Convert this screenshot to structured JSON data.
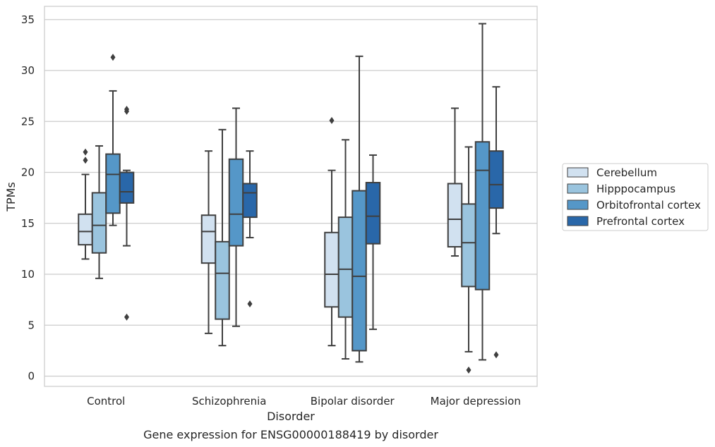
{
  "chart_data": {
    "type": "box",
    "title": "",
    "caption": "Gene expression for ENSG00000188419 by disorder",
    "xlabel": "Disorder",
    "ylabel": "TPMs",
    "ylim": [
      -1,
      36.3
    ],
    "yticks": [
      0,
      5,
      10,
      15,
      20,
      25,
      30,
      35
    ],
    "grid": "horizontal",
    "legend_position": "right",
    "categories": [
      "Control",
      "Schizophrenia",
      "Bipolar disorder",
      "Major depression"
    ],
    "series": [
      {
        "name": "Cerebellum",
        "color": "#d1e1f0",
        "boxes": [
          {
            "whislo": 11.5,
            "q1": 12.9,
            "med": 14.2,
            "q3": 15.9,
            "whishi": 19.8,
            "fliers": [
              21.2,
              22.0
            ]
          },
          {
            "whislo": 4.2,
            "q1": 11.1,
            "med": 14.2,
            "q3": 15.8,
            "whishi": 22.1,
            "fliers": []
          },
          {
            "whislo": 3.0,
            "q1": 6.8,
            "med": 10.0,
            "q3": 14.1,
            "whishi": 20.2,
            "fliers": [
              25.1
            ]
          },
          {
            "whislo": 11.8,
            "q1": 12.7,
            "med": 15.4,
            "q3": 18.9,
            "whishi": 26.3,
            "fliers": []
          }
        ]
      },
      {
        "name": "Hipppocampus",
        "color": "#9ac4de",
        "boxes": [
          {
            "whislo": 9.6,
            "q1": 12.1,
            "med": 14.8,
            "q3": 18.0,
            "whishi": 22.6,
            "fliers": []
          },
          {
            "whislo": 3.0,
            "q1": 5.6,
            "med": 10.1,
            "q3": 13.2,
            "whishi": 24.2,
            "fliers": []
          },
          {
            "whislo": 1.7,
            "q1": 5.8,
            "med": 10.5,
            "q3": 15.6,
            "whishi": 23.2,
            "fliers": []
          },
          {
            "whislo": 2.4,
            "q1": 8.8,
            "med": 13.1,
            "q3": 16.9,
            "whishi": 22.5,
            "fliers": [
              0.6
            ]
          }
        ]
      },
      {
        "name": "Orbitofrontal cortex",
        "color": "#5597c8",
        "boxes": [
          {
            "whislo": 14.8,
            "q1": 16.0,
            "med": 19.8,
            "q3": 21.8,
            "whishi": 28.0,
            "fliers": [
              31.3
            ]
          },
          {
            "whislo": 4.9,
            "q1": 12.8,
            "med": 15.9,
            "q3": 21.3,
            "whishi": 26.3,
            "fliers": []
          },
          {
            "whislo": 1.4,
            "q1": 2.5,
            "med": 9.8,
            "q3": 18.2,
            "whishi": 31.4,
            "fliers": []
          },
          {
            "whislo": 1.6,
            "q1": 8.5,
            "med": 20.2,
            "q3": 23.0,
            "whishi": 34.6,
            "fliers": []
          }
        ]
      },
      {
        "name": "Prefrontal cortex",
        "color": "#2967a9",
        "boxes": [
          {
            "whislo": 12.8,
            "q1": 17.0,
            "med": 18.1,
            "q3": 20.0,
            "whishi": 20.2,
            "fliers": [
              5.8,
              26.0,
              26.2
            ]
          },
          {
            "whislo": 13.6,
            "q1": 15.6,
            "med": 18.0,
            "q3": 18.9,
            "whishi": 22.1,
            "fliers": [
              7.1
            ]
          },
          {
            "whislo": 4.6,
            "q1": 13.0,
            "med": 15.7,
            "q3": 19.0,
            "whishi": 21.7,
            "fliers": []
          },
          {
            "whislo": 14.0,
            "q1": 16.5,
            "med": 18.8,
            "q3": 22.1,
            "whishi": 28.4,
            "fliers": [
              2.1
            ]
          }
        ]
      }
    ]
  }
}
